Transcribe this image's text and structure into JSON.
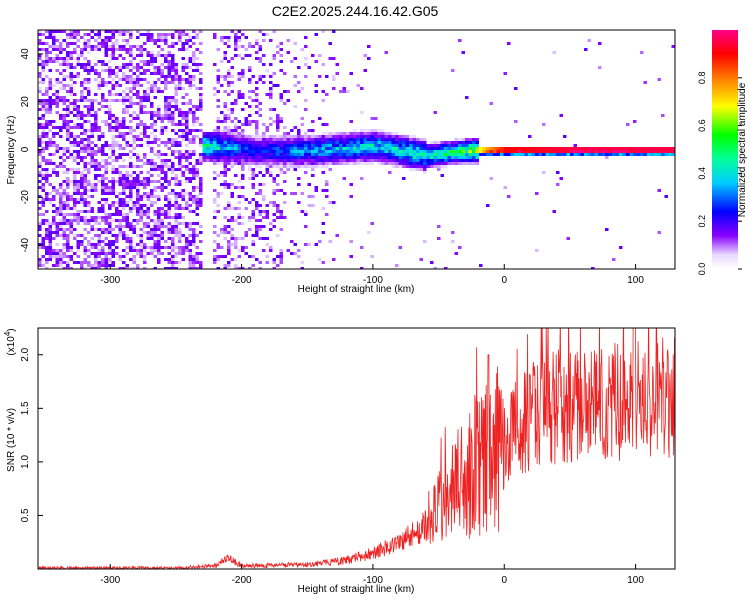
{
  "title": "C2E2.2025.244.16.42.G05",
  "chart_data": [
    {
      "type": "heatmap",
      "xlabel": "Height of straight line (km)",
      "ylabel": "Frequency (Hz)",
      "xlim": [
        -355,
        130
      ],
      "ylim": [
        -50,
        50
      ],
      "xticks": [
        -300,
        -200,
        -100,
        0,
        100
      ],
      "yticks": [
        -40,
        -20,
        0,
        20,
        40
      ],
      "colorbar": {
        "label": "Normalized spectral amplitude",
        "range": [
          0,
          1
        ],
        "ticks": [
          "0.0",
          "0.2",
          "0.4",
          "0.6",
          "0.8"
        ],
        "colormap": [
          "#ffffff",
          "#6600ff",
          "#0000ff",
          "#00ffff",
          "#00ff00",
          "#ffff00",
          "#ff0000",
          "#ff00aa"
        ]
      },
      "ridge": {
        "description_points": [
          {
            "x": -225,
            "y": 2,
            "amp": 0.45
          },
          {
            "x": -190,
            "y": 0,
            "amp": 0.25
          },
          {
            "x": -150,
            "y": 0,
            "amp": 0.35
          },
          {
            "x": -100,
            "y": 2,
            "amp": 0.4
          },
          {
            "x": -60,
            "y": -2,
            "amp": 0.45
          },
          {
            "x": -30,
            "y": 0,
            "amp": 0.55
          },
          {
            "x": -10,
            "y": 0,
            "amp": 0.8
          },
          {
            "x": 0,
            "y": 0,
            "amp": 0.9
          },
          {
            "x": 50,
            "y": 0,
            "amp": 0.95
          },
          {
            "x": 125,
            "y": 0,
            "amp": 0.95
          }
        ]
      }
    },
    {
      "type": "line",
      "xlabel": "Height of straight line (km)",
      "ylabel": "SNR (10 * v/v)",
      "yscale_label": "(x10",
      "yscale_exp": "4",
      "yscale_close": ")",
      "xlim": [
        -355,
        130
      ],
      "ylim": [
        0,
        2.25
      ],
      "xticks": [
        -300,
        -200,
        -100,
        0,
        100
      ],
      "yticks": [
        0.5,
        1.0,
        1.5,
        2.0
      ],
      "ytick_labels": [
        "0.5",
        "1.0",
        "1.5",
        "2.0"
      ],
      "series_color": "#ee2222",
      "envelope": [
        {
          "x": -355,
          "y": 0.01
        },
        {
          "x": -250,
          "y": 0.01
        },
        {
          "x": -220,
          "y": 0.03
        },
        {
          "x": -210,
          "y": 0.1
        },
        {
          "x": -200,
          "y": 0.03
        },
        {
          "x": -150,
          "y": 0.04
        },
        {
          "x": -120,
          "y": 0.08
        },
        {
          "x": -100,
          "y": 0.15
        },
        {
          "x": -80,
          "y": 0.25
        },
        {
          "x": -60,
          "y": 0.4
        },
        {
          "x": -40,
          "y": 0.7
        },
        {
          "x": -25,
          "y": 0.95
        },
        {
          "x": -10,
          "y": 1.05
        },
        {
          "x": 0,
          "y": 1.2
        },
        {
          "x": 20,
          "y": 1.42
        },
        {
          "x": 40,
          "y": 1.52
        },
        {
          "x": 70,
          "y": 1.55
        },
        {
          "x": 100,
          "y": 1.58
        },
        {
          "x": 130,
          "y": 1.6
        }
      ]
    }
  ]
}
